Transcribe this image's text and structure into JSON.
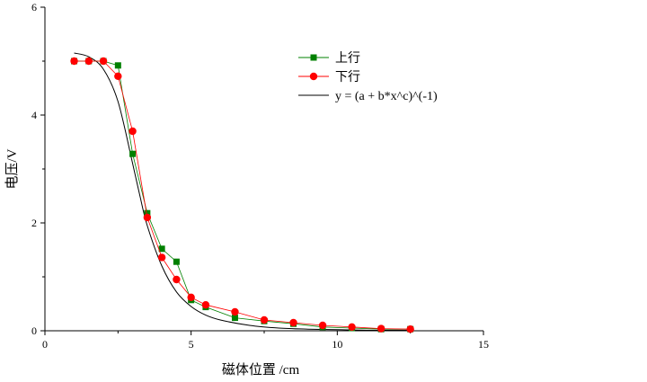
{
  "chart_data": {
    "type": "scatter",
    "xlabel": "磁体位置 /cm",
    "ylabel": "电压/V",
    "xlim": [
      0,
      15
    ],
    "ylim": [
      0,
      6
    ],
    "xticks": [
      0,
      5,
      10,
      15
    ],
    "yticks": [
      0,
      2,
      4,
      6
    ],
    "grid": false,
    "legend_position": "top-right",
    "series": [
      {
        "name": "上行",
        "marker": "square",
        "color": "#008000",
        "line": "connected",
        "x": [
          1.0,
          1.5,
          2.0,
          2.5,
          3.0,
          3.5,
          4.0,
          4.5,
          5.0,
          5.5,
          6.5,
          7.5,
          8.5,
          9.5,
          10.5,
          11.5,
          12.5
        ],
        "y": [
          5.0,
          5.0,
          5.0,
          4.92,
          3.28,
          2.18,
          1.52,
          1.28,
          0.57,
          0.44,
          0.24,
          0.18,
          0.13,
          0.07,
          0.05,
          0.03,
          0.03
        ]
      },
      {
        "name": "下行",
        "marker": "circle",
        "color": "#ff0000",
        "line": "connected",
        "x": [
          1.0,
          1.5,
          2.0,
          2.5,
          3.0,
          3.5,
          4.0,
          4.5,
          5.0,
          5.5,
          6.5,
          7.5,
          8.5,
          9.5,
          10.5,
          11.5,
          12.5
        ],
        "y": [
          5.0,
          5.0,
          5.0,
          4.72,
          3.7,
          2.1,
          1.36,
          0.95,
          0.62,
          0.48,
          0.35,
          0.2,
          0.15,
          0.1,
          0.07,
          0.04,
          0.03
        ]
      },
      {
        "name": "y = (a + b*x^c)^(-1)",
        "type": "fit-line",
        "color": "#000000",
        "x": [
          1.0,
          1.5,
          2.0,
          2.5,
          3.0,
          3.25,
          3.5,
          4.0,
          4.5,
          5.0,
          5.5,
          6.0,
          7.0,
          8.0,
          9.0,
          10.0,
          11.0,
          12.0,
          12.5
        ],
        "y": [
          5.15,
          5.08,
          4.85,
          4.25,
          3.1,
          2.5,
          1.95,
          1.2,
          0.72,
          0.45,
          0.29,
          0.2,
          0.1,
          0.05,
          0.03,
          0.02,
          0.01,
          0.01,
          0.01
        ]
      }
    ]
  }
}
